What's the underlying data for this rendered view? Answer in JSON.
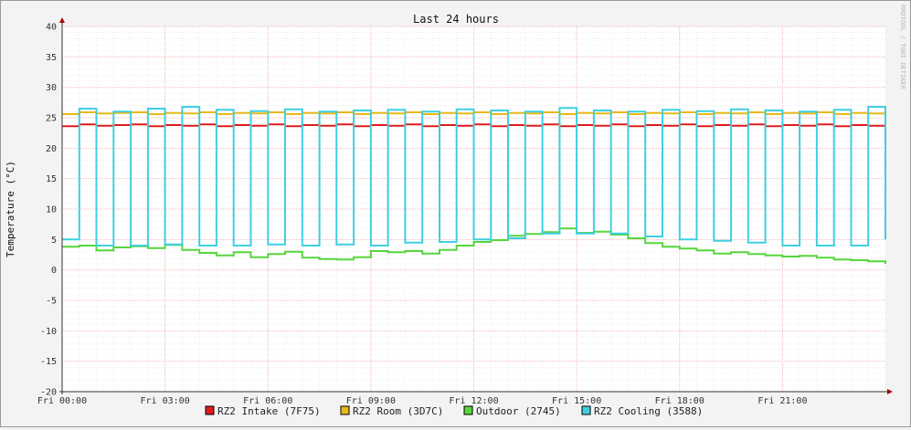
{
  "chart_data": {
    "type": "line",
    "title": "Last 24 hours",
    "ylabel": "Temperature (°C)",
    "watermark": "RRDTOOL / TOBI OETIKER",
    "ylim": [
      -20,
      40
    ],
    "xlim": [
      0,
      24
    ],
    "yticks": [
      40,
      35,
      30,
      25,
      20,
      15,
      10,
      5,
      0,
      -5,
      -10,
      -15,
      -20
    ],
    "xticks": [
      {
        "x": 0,
        "label": "Fri 00:00"
      },
      {
        "x": 3,
        "label": "Fri 03:00"
      },
      {
        "x": 6,
        "label": "Fri 06:00"
      },
      {
        "x": 9,
        "label": "Fri 09:00"
      },
      {
        "x": 12,
        "label": "Fri 12:00"
      },
      {
        "x": 15,
        "label": "Fri 15:00"
      },
      {
        "x": 18,
        "label": "Fri 18:00"
      },
      {
        "x": 21,
        "label": "Fri 21:00"
      }
    ],
    "grid": true,
    "legend": "bottom",
    "series": [
      {
        "name": "RZ2 Intake (7F75)",
        "color": "#e11b1b",
        "x": [
          0,
          0.5,
          1,
          1.5,
          2,
          2.5,
          3,
          3.5,
          4,
          4.5,
          5,
          5.5,
          6,
          6.5,
          7,
          7.5,
          8,
          8.5,
          9,
          9.5,
          10,
          10.5,
          11,
          11.5,
          12,
          12.5,
          13,
          13.5,
          14,
          14.5,
          15,
          15.5,
          16,
          16.5,
          17,
          17.5,
          18,
          18.5,
          19,
          19.5,
          20,
          20.5,
          21,
          21.5,
          22,
          22.5,
          23,
          23.5,
          24
        ],
        "values": [
          23.6,
          23.9,
          23.7,
          23.8,
          23.9,
          23.6,
          23.8,
          23.7,
          23.9,
          23.6,
          23.8,
          23.7,
          23.9,
          23.6,
          23.8,
          23.7,
          23.9,
          23.6,
          23.8,
          23.7,
          23.9,
          23.6,
          23.8,
          23.7,
          23.9,
          23.6,
          23.8,
          23.7,
          23.9,
          23.6,
          23.8,
          23.7,
          23.9,
          23.6,
          23.8,
          23.7,
          23.9,
          23.6,
          23.8,
          23.7,
          23.9,
          23.6,
          23.8,
          23.7,
          23.9,
          23.6,
          23.8,
          23.7,
          23.9
        ]
      },
      {
        "name": "RZ2 Room (3D7C)",
        "color": "#e8b816",
        "x": [
          0,
          0.5,
          1,
          1.5,
          2,
          2.5,
          3,
          3.5,
          4,
          4.5,
          5,
          5.5,
          6,
          6.5,
          7,
          7.5,
          8,
          8.5,
          9,
          9.5,
          10,
          10.5,
          11,
          11.5,
          12,
          12.5,
          13,
          13.5,
          14,
          14.5,
          15,
          15.5,
          16,
          16.5,
          17,
          17.5,
          18,
          18.5,
          19,
          19.5,
          20,
          20.5,
          21,
          21.5,
          22,
          22.5,
          23,
          23.5,
          24
        ],
        "values": [
          25.6,
          25.9,
          25.7,
          25.8,
          25.9,
          25.6,
          25.8,
          25.7,
          25.9,
          25.6,
          25.8,
          25.7,
          25.9,
          25.6,
          25.8,
          25.7,
          25.9,
          25.6,
          25.8,
          25.7,
          25.9,
          25.6,
          25.8,
          25.7,
          25.9,
          25.6,
          25.8,
          25.7,
          25.9,
          25.6,
          25.8,
          25.7,
          25.9,
          25.6,
          25.8,
          25.7,
          25.9,
          25.6,
          25.8,
          25.7,
          25.9,
          25.6,
          25.8,
          25.7,
          25.9,
          25.6,
          25.8,
          25.7,
          25.9
        ]
      },
      {
        "name": "Outdoor (2745)",
        "color": "#57d63c",
        "x": [
          0,
          0.5,
          1,
          1.5,
          2,
          2.5,
          3,
          3.5,
          4,
          4.5,
          5,
          5.5,
          6,
          6.5,
          7,
          7.5,
          8,
          8.5,
          9,
          9.5,
          10,
          10.5,
          11,
          11.5,
          12,
          12.5,
          13,
          13.5,
          14,
          14.5,
          15,
          15.5,
          16,
          16.5,
          17,
          17.5,
          18,
          18.5,
          19,
          19.5,
          20,
          20.5,
          21,
          21.5,
          22,
          22.5,
          23,
          23.5,
          24
        ],
        "values": [
          3.8,
          4.0,
          3.2,
          3.7,
          3.9,
          3.6,
          4.1,
          3.3,
          2.8,
          2.4,
          2.9,
          2.1,
          2.6,
          3.0,
          2.0,
          1.8,
          1.7,
          2.1,
          3.1,
          2.9,
          3.1,
          2.7,
          3.3,
          4.0,
          4.6,
          4.9,
          5.6,
          5.9,
          6.2,
          6.8,
          6.1,
          6.3,
          5.8,
          5.2,
          4.4,
          3.8,
          3.5,
          3.2,
          2.7,
          2.9,
          2.6,
          2.4,
          2.2,
          2.3,
          2.0,
          1.7,
          1.6,
          1.4,
          1.0
        ]
      },
      {
        "name": "RZ2 Cooling (3588)",
        "color": "#3fcfe0",
        "x": [
          0,
          0.5,
          1,
          1.5,
          2,
          2.5,
          3,
          3.5,
          4,
          4.5,
          5,
          5.5,
          6,
          6.5,
          7,
          7.5,
          8,
          8.5,
          9,
          9.5,
          10,
          10.5,
          11,
          11.5,
          12,
          12.5,
          13,
          13.5,
          14,
          14.5,
          15,
          15.5,
          16,
          16.5,
          17,
          17.5,
          18,
          18.5,
          19,
          19.5,
          20,
          20.5,
          21,
          21.5,
          22,
          22.5,
          23,
          23.5,
          24
        ],
        "values": [
          5.0,
          26.5,
          4.0,
          26.0,
          4.0,
          26.5,
          4.2,
          26.8,
          4.0,
          26.3,
          4.0,
          26.1,
          4.2,
          26.4,
          4.0,
          26.0,
          4.2,
          26.2,
          4.0,
          26.3,
          4.5,
          26.0,
          4.6,
          26.4,
          5.0,
          26.2,
          5.2,
          26.0,
          6.0,
          26.6,
          6.0,
          26.2,
          6.0,
          26.0,
          5.5,
          26.3,
          5.0,
          26.1,
          4.8,
          26.4,
          4.5,
          26.2,
          4.0,
          26.0,
          4.0,
          26.3,
          4.0,
          26.8,
          5.0
        ]
      }
    ]
  }
}
